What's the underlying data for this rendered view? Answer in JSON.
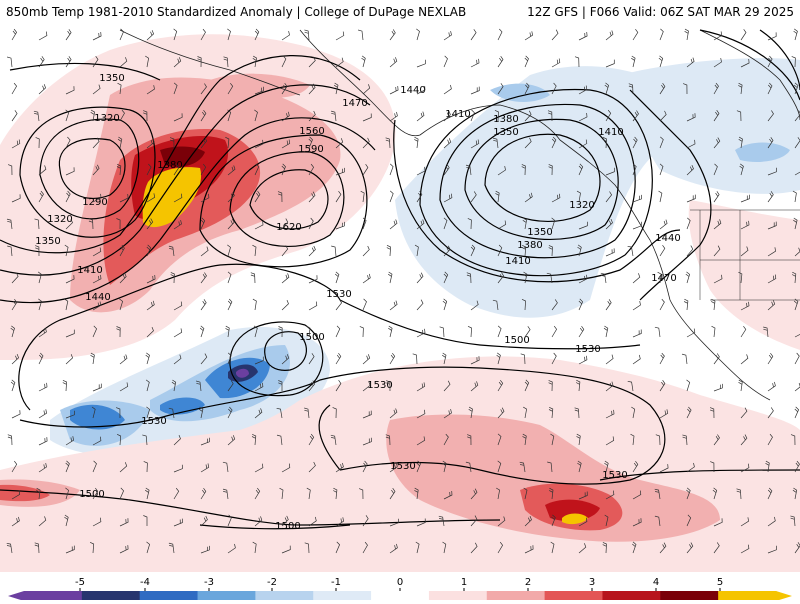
{
  "header": {
    "title_left": "850mb Temp 1981-2010 Standardized Anomaly | College of DuPage NEXLAB",
    "title_right": "12Z GFS | F066 Valid: 06Z SAT MAR 29 2025"
  },
  "contours": [
    {
      "label": "1350",
      "kind": "height"
    },
    {
      "label": "1320",
      "kind": "height"
    },
    {
      "label": "1290",
      "kind": "height"
    },
    {
      "label": "1320",
      "kind": "height"
    },
    {
      "label": "1350",
      "kind": "height"
    },
    {
      "label": "1410",
      "kind": "height"
    },
    {
      "label": "1440",
      "kind": "height"
    },
    {
      "label": "1380",
      "kind": "height"
    },
    {
      "label": "1470",
      "kind": "height"
    },
    {
      "label": "1440",
      "kind": "height"
    },
    {
      "label": "1560",
      "kind": "height"
    },
    {
      "label": "1590",
      "kind": "height"
    },
    {
      "label": "1620",
      "kind": "height"
    },
    {
      "label": "1410",
      "kind": "height"
    },
    {
      "label": "1380",
      "kind": "height"
    },
    {
      "label": "1350",
      "kind": "height"
    },
    {
      "label": "1410",
      "kind": "height"
    },
    {
      "label": "1320",
      "kind": "height"
    },
    {
      "label": "1350",
      "kind": "height"
    },
    {
      "label": "1380",
      "kind": "height"
    },
    {
      "label": "1410",
      "kind": "height"
    },
    {
      "label": "1440",
      "kind": "height"
    },
    {
      "label": "1470",
      "kind": "height"
    },
    {
      "label": "1530",
      "kind": "height"
    },
    {
      "label": "1500",
      "kind": "height"
    },
    {
      "label": "1500",
      "kind": "height"
    },
    {
      "label": "1530",
      "kind": "height"
    },
    {
      "label": "1530",
      "kind": "height"
    },
    {
      "label": "1530",
      "kind": "height"
    },
    {
      "label": "1530",
      "kind": "height"
    },
    {
      "label": "1530",
      "kind": "height"
    },
    {
      "label": "1500",
      "kind": "height"
    },
    {
      "label": "1500",
      "kind": "height"
    }
  ],
  "colorbar": {
    "ticks": [
      "-5",
      "-4",
      "-3",
      "-2",
      "-1",
      "0",
      "1",
      "2",
      "3",
      "4",
      "5"
    ],
    "colors": [
      "#6b3fa0",
      "#27356e",
      "#2f6bc2",
      "#6aa6dc",
      "#b8d3ee",
      "#dfeaf6",
      "#ffffff",
      "#fbe0e0",
      "#f2a9a9",
      "#e35555",
      "#b7141c",
      "#7a0008",
      "#f5c400"
    ]
  },
  "colors": {
    "cold": "#dde9f5",
    "cold2": "#a9cbec",
    "cold3": "#3f86d4",
    "cold4": "#27356e",
    "cold5": "#6b3fa0",
    "warm": "#fbe3e3",
    "warm2": "#f2b0b0",
    "warm3": "#e35a5a",
    "warm4": "#c0131b",
    "warm5": "#7a0008",
    "extreme": "#f5c400",
    "contour": "#000000",
    "coast": "#222222"
  }
}
